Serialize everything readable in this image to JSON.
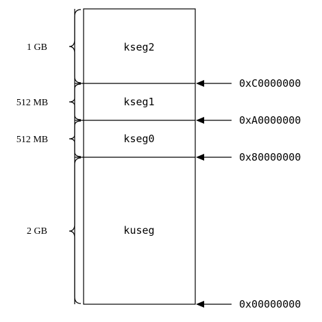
{
  "segments": [
    {
      "name": "kseg2",
      "size": "1 GB",
      "start_address": "0xC0000000"
    },
    {
      "name": "kseg1",
      "size": "512 MB",
      "start_address": "0xA0000000"
    },
    {
      "name": "kseg0",
      "size": "512 MB",
      "start_address": "0x80000000"
    },
    {
      "name": "kuseg",
      "size": "2 GB",
      "start_address": "0x00000000"
    }
  ]
}
